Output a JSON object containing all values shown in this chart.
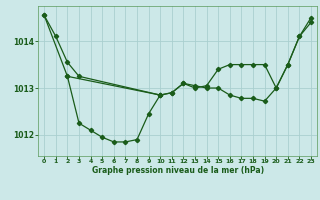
{
  "xlabel": "Graphe pression niveau de la mer (hPa)",
  "background_color": "#cce8e8",
  "grid_color": "#aacfcf",
  "line_color": "#1a5c1a",
  "marker_color": "#1a5c1a",
  "ylim": [
    1011.55,
    1014.75
  ],
  "xlim": [
    -0.5,
    23.5
  ],
  "yticks": [
    1012,
    1013,
    1014
  ],
  "xtick_labels": [
    "0",
    "1",
    "2",
    "3",
    "4",
    "5",
    "6",
    "7",
    "8",
    "9",
    "10",
    "11",
    "12",
    "13",
    "14",
    "15",
    "16",
    "17",
    "18",
    "19",
    "20",
    "21",
    "22",
    "23"
  ],
  "series1_x": [
    0,
    1,
    2,
    3,
    10,
    11,
    12,
    13,
    14,
    15,
    16,
    17,
    18,
    19,
    20,
    21,
    22,
    23
  ],
  "series1_y": [
    1014.55,
    1014.1,
    1013.55,
    1013.25,
    1012.85,
    1012.9,
    1013.1,
    1013.05,
    1013.0,
    1013.0,
    1012.85,
    1012.78,
    1012.78,
    1012.72,
    1013.0,
    1013.5,
    1014.1,
    1014.4
  ],
  "series2_x": [
    0,
    2,
    3,
    4,
    5,
    6,
    7,
    8,
    9,
    10
  ],
  "series2_y": [
    1014.55,
    1013.25,
    1012.25,
    1012.1,
    1011.95,
    1011.85,
    1011.85,
    1011.9,
    1012.45,
    1012.85
  ],
  "series3_x": [
    2,
    10,
    11,
    12,
    13,
    14,
    15,
    16,
    17,
    18,
    19,
    20,
    21,
    22,
    23
  ],
  "series3_y": [
    1013.25,
    1012.85,
    1012.9,
    1013.1,
    1013.0,
    1013.05,
    1013.4,
    1013.5,
    1013.5,
    1013.5,
    1013.5,
    1013.0,
    1013.5,
    1014.1,
    1014.5
  ]
}
